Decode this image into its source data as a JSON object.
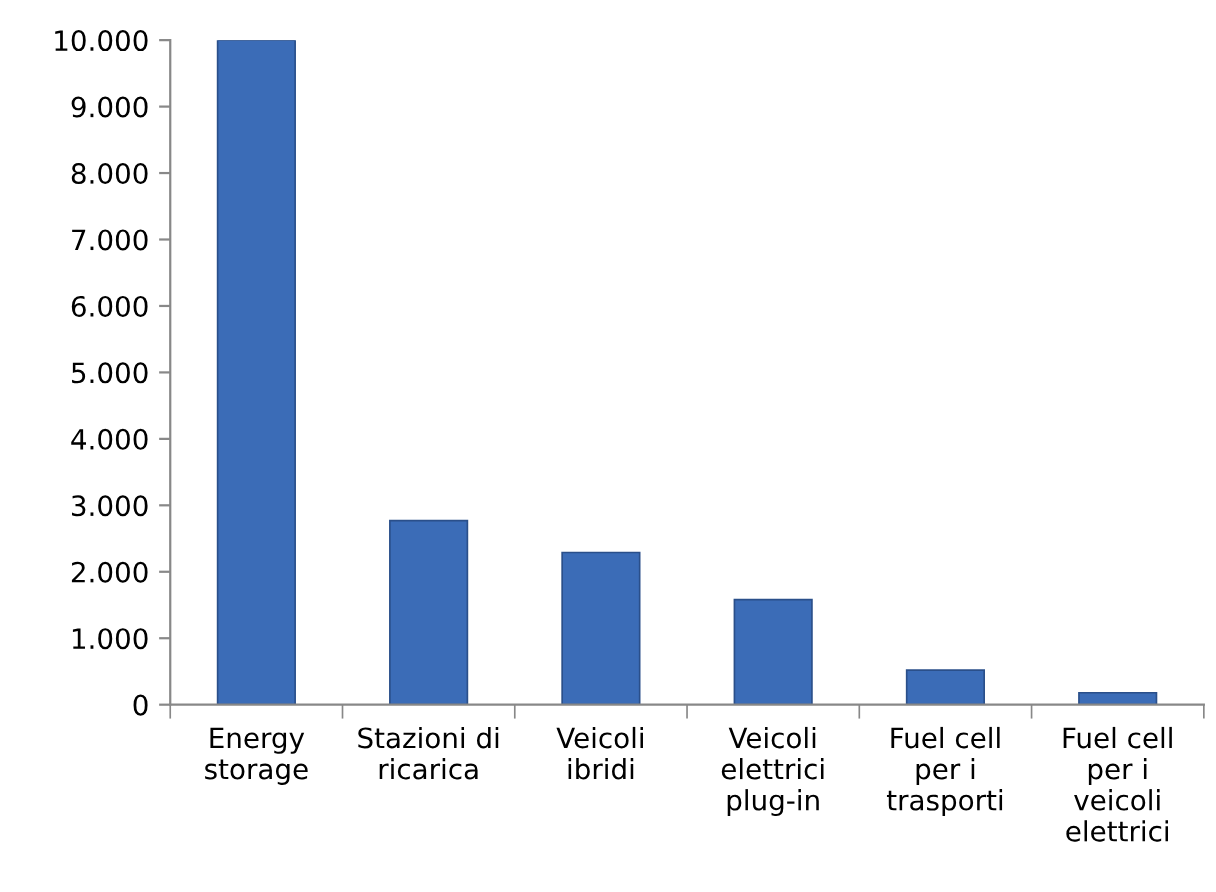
{
  "chart_data": {
    "type": "bar",
    "categories": [
      "Energy\nstorage",
      "Stazioni di\nricarica",
      "Veicoli\nibridi",
      "Veicoli\nelettrici\nplug-in",
      "Fuel cell\nper i\ntrasporti",
      "Fuel cell\nper i\nveicoli\nelettrici"
    ],
    "values": [
      10000,
      2770,
      2290,
      1580,
      520,
      180
    ],
    "color": "#3b6cb7",
    "ylim": [
      0,
      10000
    ],
    "yticks": [
      {
        "value": 0,
        "label": "0"
      },
      {
        "value": 1000,
        "label": "1.000"
      },
      {
        "value": 2000,
        "label": "2.000"
      },
      {
        "value": 3000,
        "label": "3.000"
      },
      {
        "value": 4000,
        "label": "4.000"
      },
      {
        "value": 5000,
        "label": "5.000"
      },
      {
        "value": 6000,
        "label": "6.000"
      },
      {
        "value": 7000,
        "label": "7.000"
      },
      {
        "value": 8000,
        "label": "8.000"
      },
      {
        "value": 9000,
        "label": "9.000"
      },
      {
        "value": 10000,
        "label": "10.000"
      }
    ],
    "grid": false
  }
}
